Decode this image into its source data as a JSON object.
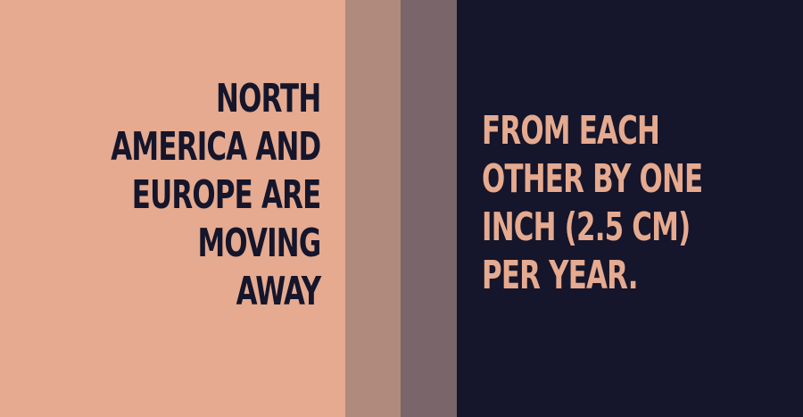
{
  "colors": {
    "left_panel": "#e5aa8f",
    "stripe_light": "#b08a7c",
    "stripe_dark": "#79656a",
    "right_panel": "#15152b",
    "left_text": "#15152b",
    "right_text": "#e5aa8f"
  },
  "left_text": {
    "lines": [
      "NORTH",
      "AMERICA AND",
      "EUROPE ARE",
      "MOVING",
      "AWAY"
    ]
  },
  "right_text": {
    "lines": [
      "FROM EACH",
      "OTHER BY ONE",
      "INCH (2.5 CM)",
      "PER YEAR."
    ]
  }
}
